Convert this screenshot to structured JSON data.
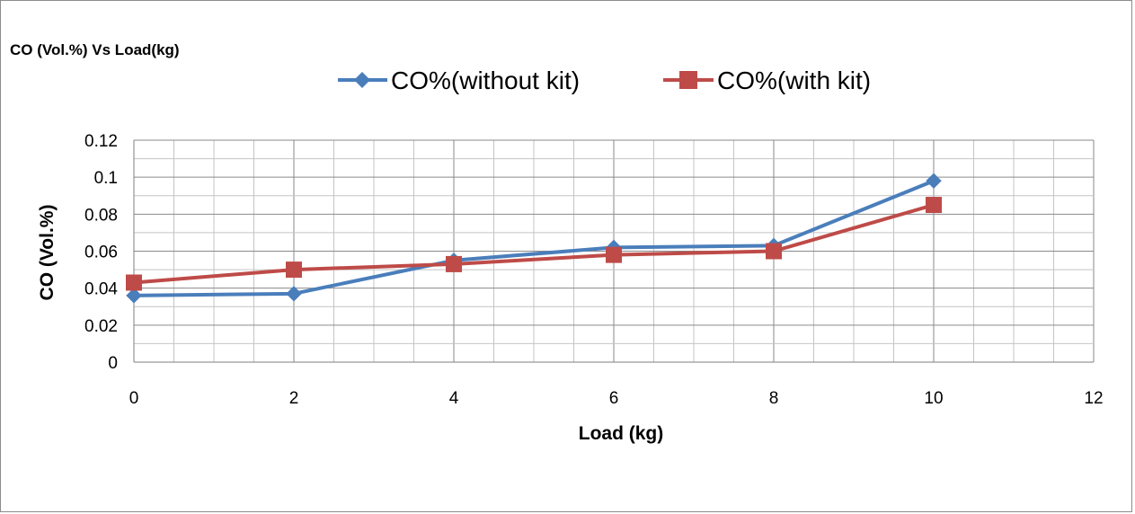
{
  "chart_data": {
    "type": "line",
    "title": "CO (Vol.%) Vs Load(kg)",
    "xlabel": "Load (kg)",
    "ylabel": "CO  (Vol.%)",
    "xlim": [
      0,
      12
    ],
    "ylim": [
      0,
      0.12
    ],
    "x_ticks": [
      "0",
      "2",
      "4",
      "6",
      "8",
      "10",
      "12"
    ],
    "y_ticks": [
      "0",
      "0.02",
      "0.04",
      "0.06",
      "0.08",
      "0.1",
      "0.12"
    ],
    "grid": true,
    "legend_position": "top",
    "series": [
      {
        "name": "CO%(without kit)",
        "color": "#4a7ebb",
        "marker": "diamond",
        "x": [
          0,
          2,
          4,
          6,
          8,
          10
        ],
        "values": [
          0.036,
          0.037,
          0.055,
          0.062,
          0.063,
          0.098
        ]
      },
      {
        "name": "CO%(with kit)",
        "color": "#be4b48",
        "marker": "square",
        "x": [
          0,
          2,
          4,
          6,
          8,
          10
        ],
        "values": [
          0.043,
          0.05,
          0.053,
          0.058,
          0.06,
          0.085
        ]
      }
    ]
  }
}
